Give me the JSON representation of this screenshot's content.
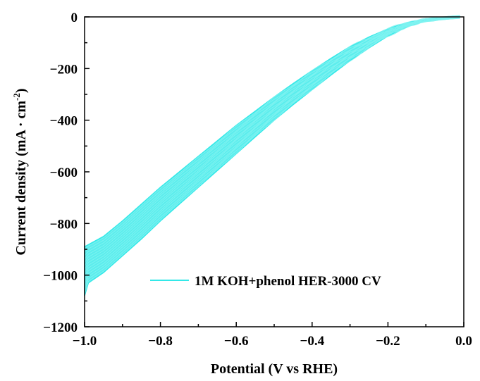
{
  "chart_data": {
    "type": "line",
    "xlabel": "Potential (V vs RHE)",
    "ylabel_main": "Current density (mA · cm",
    "ylabel_sup": "-2",
    "ylabel_close": ")",
    "xlim": [
      -1.0,
      0.0
    ],
    "ylim": [
      -1200,
      0
    ],
    "x_ticks": [
      -1.0,
      -0.8,
      -0.6,
      -0.4,
      -0.2,
      0.0
    ],
    "x_tick_labels": [
      "−1.0",
      "−0.8",
      "−0.6",
      "−0.4",
      "−0.2",
      "0.0"
    ],
    "y_ticks": [
      0,
      -200,
      -400,
      -600,
      -800,
      -1000,
      -1200
    ],
    "y_tick_labels": [
      "0",
      "−200",
      "−400",
      "−600",
      "−800",
      "−1000",
      "−1200"
    ],
    "grid": false,
    "legend_position": "bottom-right",
    "series": [
      {
        "name": "1M KOH+phenol HER-3000 CV",
        "color": "#33e8e8",
        "upper": {
          "x": [
            -1.0,
            -0.95,
            -0.9,
            -0.85,
            -0.8,
            -0.75,
            -0.7,
            -0.65,
            -0.6,
            -0.55,
            -0.5,
            -0.45,
            -0.4,
            -0.35,
            -0.3,
            -0.25,
            -0.2,
            -0.15,
            -0.1,
            -0.05,
            -0.01
          ],
          "y": [
            -890,
            -850,
            -790,
            -725,
            -660,
            -600,
            -540,
            -480,
            -420,
            -365,
            -310,
            -258,
            -208,
            -160,
            -115,
            -78,
            -46,
            -22,
            -10,
            -4,
            0
          ]
        },
        "lower": {
          "x": [
            -1.0,
            -0.99,
            -0.95,
            -0.9,
            -0.85,
            -0.8,
            -0.75,
            -0.7,
            -0.65,
            -0.6,
            -0.55,
            -0.5,
            -0.45,
            -0.4,
            -0.35,
            -0.3,
            -0.25,
            -0.2,
            -0.15,
            -0.1,
            -0.05,
            -0.01
          ],
          "y": [
            -1080,
            -1030,
            -990,
            -925,
            -860,
            -790,
            -725,
            -660,
            -595,
            -530,
            -465,
            -400,
            -340,
            -282,
            -225,
            -170,
            -120,
            -74,
            -38,
            -15,
            -5,
            0
          ]
        }
      }
    ]
  }
}
